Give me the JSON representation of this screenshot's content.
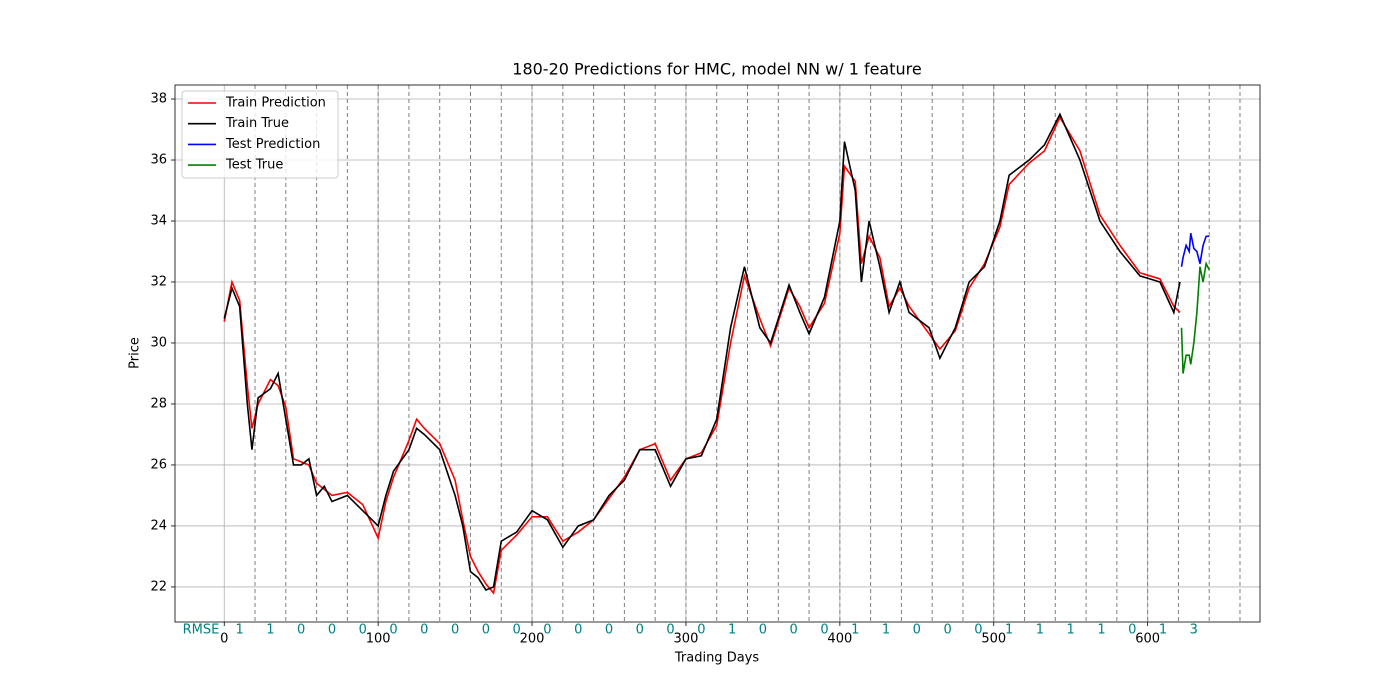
{
  "chart_data": {
    "type": "line",
    "title": "180-20 Predictions for HMC, model NN w/ 1 feature",
    "xlabel": "Trading Days",
    "ylabel": "Price",
    "xlim": [
      -32,
      673
    ],
    "ylim": [
      20.85,
      38.46
    ],
    "xticks": [
      0,
      100,
      200,
      300,
      400,
      500,
      600
    ],
    "yticks": [
      22,
      24,
      26,
      28,
      30,
      32,
      34,
      36,
      38
    ],
    "grid": true,
    "legend": "upper left",
    "vlines": [
      20,
      40,
      60,
      80,
      100,
      120,
      140,
      160,
      180,
      200,
      220,
      240,
      260,
      280,
      300,
      320,
      340,
      360,
      380,
      400,
      420,
      440,
      460,
      480,
      500,
      520,
      540,
      560,
      580,
      600,
      620,
      640,
      660
    ],
    "rmse": {
      "label": "RMSE",
      "values": [
        1,
        1,
        0,
        0,
        0,
        0,
        0,
        0,
        0,
        0,
        0,
        0,
        0,
        0,
        0,
        0,
        1,
        0,
        0,
        0,
        1,
        1,
        0,
        0,
        0,
        1,
        1,
        1,
        1,
        0,
        1,
        3
      ]
    },
    "series": [
      {
        "name": "Train Prediction",
        "color": "#ff0000",
        "x": [
          0,
          5,
          10,
          15,
          18,
          22,
          30,
          35,
          40,
          45,
          50,
          55,
          60,
          65,
          70,
          80,
          90,
          100,
          105,
          110,
          120,
          125,
          130,
          140,
          150,
          155,
          160,
          165,
          170,
          175,
          180,
          190,
          200,
          210,
          220,
          230,
          240,
          250,
          260,
          270,
          280,
          290,
          300,
          310,
          320,
          329,
          338,
          348,
          355,
          367,
          374,
          380,
          390,
          400,
          403,
          410,
          414,
          419,
          426,
          432,
          439,
          445,
          458,
          465,
          475,
          484,
          494,
          504,
          510,
          523,
          533,
          543,
          556,
          569,
          582,
          595,
          608,
          617,
          621
        ],
        "values": [
          30.7,
          32.0,
          31.4,
          28.6,
          27.2,
          28.0,
          28.8,
          28.6,
          27.9,
          26.2,
          26.1,
          26.0,
          25.4,
          25.2,
          25.0,
          25.1,
          24.7,
          23.6,
          24.8,
          25.6,
          26.8,
          27.5,
          27.2,
          26.7,
          25.5,
          24.2,
          23.0,
          22.5,
          22.1,
          21.8,
          23.2,
          23.7,
          24.3,
          24.3,
          23.5,
          23.8,
          24.2,
          24.9,
          25.6,
          26.5,
          26.7,
          25.5,
          26.2,
          26.4,
          27.3,
          30.0,
          32.2,
          30.8,
          29.9,
          31.8,
          31.2,
          30.5,
          31.3,
          33.6,
          35.8,
          35.3,
          32.6,
          33.5,
          32.8,
          31.2,
          31.8,
          31.2,
          30.3,
          29.8,
          30.4,
          31.8,
          32.6,
          33.8,
          35.2,
          35.9,
          36.3,
          37.4,
          36.3,
          34.2,
          33.2,
          32.3,
          32.1,
          31.2,
          31.0
        ]
      },
      {
        "name": "Train True",
        "color": "#000000",
        "x": [
          0,
          5,
          10,
          15,
          18,
          22,
          30,
          35,
          40,
          45,
          50,
          55,
          60,
          65,
          70,
          80,
          90,
          100,
          105,
          110,
          120,
          125,
          130,
          140,
          150,
          155,
          160,
          165,
          170,
          175,
          180,
          190,
          200,
          210,
          220,
          230,
          240,
          250,
          260,
          270,
          280,
          290,
          300,
          310,
          320,
          329,
          338,
          348,
          355,
          367,
          374,
          380,
          390,
          400,
          403,
          410,
          414,
          419,
          426,
          432,
          439,
          445,
          458,
          465,
          475,
          484,
          494,
          504,
          510,
          523,
          533,
          543,
          556,
          569,
          582,
          595,
          608,
          617,
          621
        ],
        "values": [
          30.8,
          31.8,
          31.2,
          28.0,
          26.5,
          28.2,
          28.5,
          29.0,
          27.5,
          26.0,
          26.0,
          26.2,
          25.0,
          25.3,
          24.8,
          25.0,
          24.5,
          24.0,
          25.0,
          25.8,
          26.5,
          27.2,
          27.0,
          26.5,
          25.0,
          24.0,
          22.5,
          22.3,
          21.9,
          22.0,
          23.5,
          23.8,
          24.5,
          24.2,
          23.3,
          24.0,
          24.2,
          25.0,
          25.5,
          26.5,
          26.5,
          25.3,
          26.2,
          26.3,
          27.5,
          30.5,
          32.5,
          30.5,
          30.0,
          31.9,
          31.0,
          30.3,
          31.5,
          34.0,
          36.6,
          35.0,
          32.0,
          34.0,
          32.5,
          31.0,
          32.0,
          31.0,
          30.5,
          29.5,
          30.5,
          32.0,
          32.5,
          34.0,
          35.5,
          36.0,
          36.5,
          37.5,
          36.0,
          34.0,
          33.0,
          32.2,
          32.0,
          31.0,
          32.0
        ]
      },
      {
        "name": "Test Prediction",
        "color": "#0000ff",
        "x": [
          622,
          623,
          625,
          627,
          628,
          630,
          632,
          634,
          636,
          638,
          640
        ],
        "values": [
          32.5,
          32.8,
          33.2,
          33.0,
          33.6,
          33.1,
          33.0,
          32.6,
          33.2,
          33.5,
          33.5
        ]
      },
      {
        "name": "Test True",
        "color": "#008000",
        "x": [
          622,
          623,
          625,
          627,
          628,
          630,
          632,
          634,
          636,
          638,
          640
        ],
        "values": [
          30.5,
          29.0,
          29.6,
          29.6,
          29.3,
          30.0,
          31.0,
          32.5,
          32.0,
          32.6,
          32.4
        ]
      }
    ]
  }
}
